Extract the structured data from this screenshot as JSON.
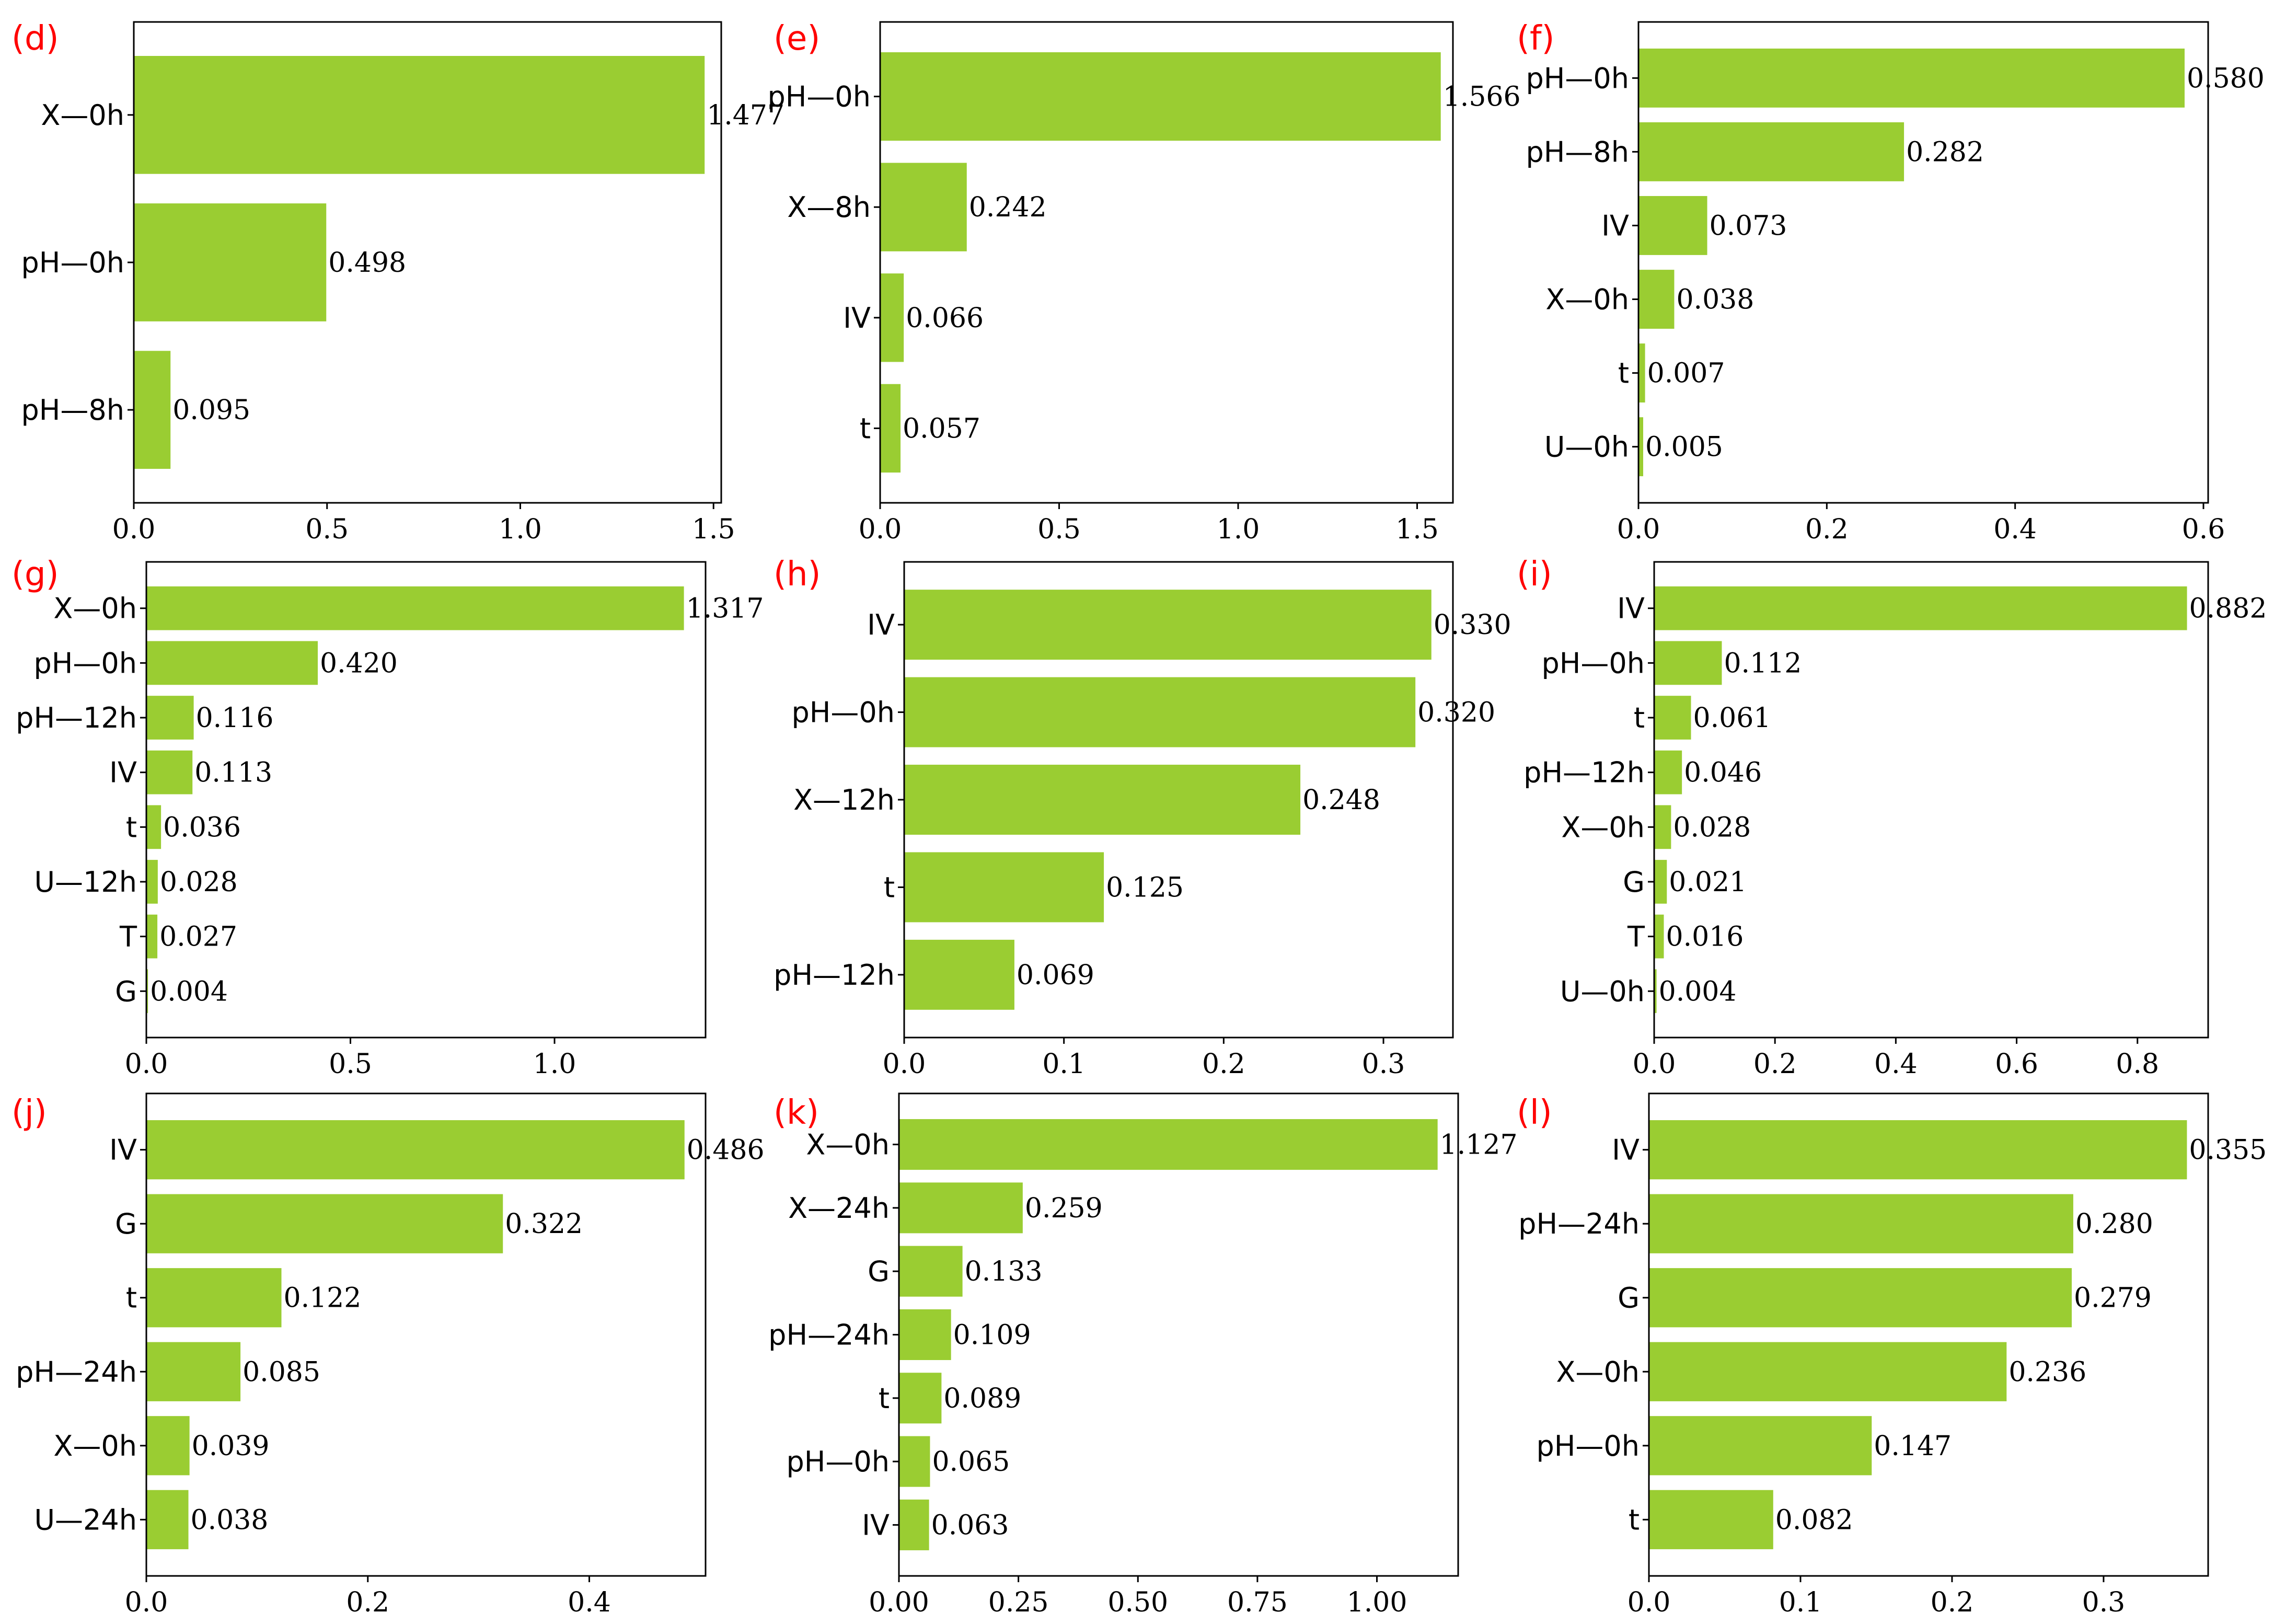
{
  "colors": {
    "bar": "#9ACD32",
    "panel_label": "#ff0000",
    "axis": "#000000"
  },
  "chart_data": [
    {
      "type": "bar",
      "orientation": "horizontal",
      "panel": "(d)",
      "categories": [
        "X—0h",
        "pH—0h",
        "pH—8h"
      ],
      "values": [
        1.477,
        0.498,
        0.095
      ],
      "value_labels": [
        "1.477",
        "0.498",
        "0.095"
      ],
      "xlim": [
        0,
        1.52
      ],
      "ticks": [
        0,
        0.5,
        1.0,
        1.5
      ],
      "tick_labels": [
        "0.0",
        "0.5",
        "1.0",
        "1.5"
      ]
    },
    {
      "type": "bar",
      "orientation": "horizontal",
      "panel": "(e)",
      "categories": [
        "pH—0h",
        "X—8h",
        "IV",
        "t"
      ],
      "values": [
        1.566,
        0.242,
        0.066,
        0.057
      ],
      "value_labels": [
        "1.566",
        "0.242",
        "0.066",
        "0.057"
      ],
      "xlim": [
        0,
        1.6
      ],
      "ticks": [
        0,
        0.5,
        1.0,
        1.5
      ],
      "tick_labels": [
        "0.0",
        "0.5",
        "1.0",
        "1.5"
      ]
    },
    {
      "type": "bar",
      "orientation": "horizontal",
      "panel": "(f)",
      "categories": [
        "pH—0h",
        "pH—8h",
        "IV",
        "X—0h",
        "t",
        "U—0h"
      ],
      "values": [
        0.58,
        0.282,
        0.073,
        0.038,
        0.007,
        0.005
      ],
      "value_labels": [
        "0.580",
        "0.282",
        "0.073",
        "0.038",
        "0.007",
        "0.005"
      ],
      "xlim": [
        0,
        0.605
      ],
      "ticks": [
        0,
        0.2,
        0.4,
        0.6
      ],
      "tick_labels": [
        "0.0",
        "0.2",
        "0.4",
        "0.6"
      ]
    },
    {
      "type": "bar",
      "orientation": "horizontal",
      "panel": "(g)",
      "categories": [
        "X—0h",
        "pH—0h",
        "pH—12h",
        "IV",
        "t",
        "U—12h",
        "T",
        "G"
      ],
      "values": [
        1.317,
        0.42,
        0.116,
        0.113,
        0.036,
        0.028,
        0.027,
        0.004
      ],
      "value_labels": [
        "1.317",
        "0.420",
        "0.116",
        "0.113",
        "0.036",
        "0.028",
        "0.027",
        "0.004"
      ],
      "xlim": [
        0,
        1.37
      ],
      "ticks": [
        0,
        0.5,
        1.0
      ],
      "tick_labels": [
        "0.0",
        "0.5",
        "1.0"
      ]
    },
    {
      "type": "bar",
      "orientation": "horizontal",
      "panel": "(h)",
      "categories": [
        "IV",
        "pH—0h",
        "X—12h",
        "t",
        "pH—12h"
      ],
      "values": [
        0.33,
        0.32,
        0.248,
        0.125,
        0.069
      ],
      "value_labels": [
        "0.330",
        "0.320",
        "0.248",
        "0.125",
        "0.069"
      ],
      "xlim": [
        0,
        0.3435
      ],
      "ticks": [
        0,
        0.1,
        0.2,
        0.3
      ],
      "tick_labels": [
        "0.0",
        "0.1",
        "0.2",
        "0.3"
      ]
    },
    {
      "type": "bar",
      "orientation": "horizontal",
      "panel": "(i)",
      "categories": [
        "IV",
        "pH—0h",
        "t",
        "pH—12h",
        "X—0h",
        "G",
        "T",
        "U—0h"
      ],
      "values": [
        0.882,
        0.112,
        0.061,
        0.046,
        0.028,
        0.021,
        0.016,
        0.004
      ],
      "value_labels": [
        "0.882",
        "0.112",
        "0.061",
        "0.046",
        "0.028",
        "0.021",
        "0.016",
        "0.004"
      ],
      "xlim": [
        0,
        0.917
      ],
      "ticks": [
        0,
        0.2,
        0.4,
        0.6,
        0.8
      ],
      "tick_labels": [
        "0.0",
        "0.2",
        "0.4",
        "0.6",
        "0.8"
      ]
    },
    {
      "type": "bar",
      "orientation": "horizontal",
      "panel": "(j)",
      "categories": [
        "IV",
        "G",
        "t",
        "pH—24h",
        "X—0h",
        "U—24h"
      ],
      "values": [
        0.486,
        0.322,
        0.122,
        0.085,
        0.039,
        0.038
      ],
      "value_labels": [
        "0.486",
        "0.322",
        "0.122",
        "0.085",
        "0.039",
        "0.038"
      ],
      "xlim": [
        0,
        0.505
      ],
      "ticks": [
        0,
        0.2,
        0.4
      ],
      "tick_labels": [
        "0.0",
        "0.2",
        "0.4"
      ]
    },
    {
      "type": "bar",
      "orientation": "horizontal",
      "panel": "(k)",
      "categories": [
        "X—0h",
        "X—24h",
        "G",
        "pH—24h",
        "t",
        "pH—0h",
        "IV"
      ],
      "values": [
        1.127,
        0.259,
        0.133,
        0.109,
        0.089,
        0.065,
        0.063
      ],
      "value_labels": [
        "1.127",
        "0.259",
        "0.133",
        "0.109",
        "0.089",
        "0.065",
        "0.063"
      ],
      "xlim": [
        0,
        1.17
      ],
      "ticks": [
        0,
        0.25,
        0.5,
        0.75,
        1.0
      ],
      "tick_labels": [
        "0.00",
        "0.25",
        "0.50",
        "0.75",
        "1.00"
      ]
    },
    {
      "type": "bar",
      "orientation": "horizontal",
      "panel": "(l)",
      "categories": [
        "IV",
        "pH—24h",
        "G",
        "X—0h",
        "pH—0h",
        "t"
      ],
      "values": [
        0.355,
        0.28,
        0.279,
        0.236,
        0.147,
        0.082
      ],
      "value_labels": [
        "0.355",
        "0.280",
        "0.279",
        "0.236",
        "0.147",
        "0.082"
      ],
      "xlim": [
        0,
        0.369
      ],
      "ticks": [
        0,
        0.1,
        0.2,
        0.3
      ],
      "tick_labels": [
        "0.0",
        "0.1",
        "0.2",
        "0.3"
      ]
    }
  ]
}
